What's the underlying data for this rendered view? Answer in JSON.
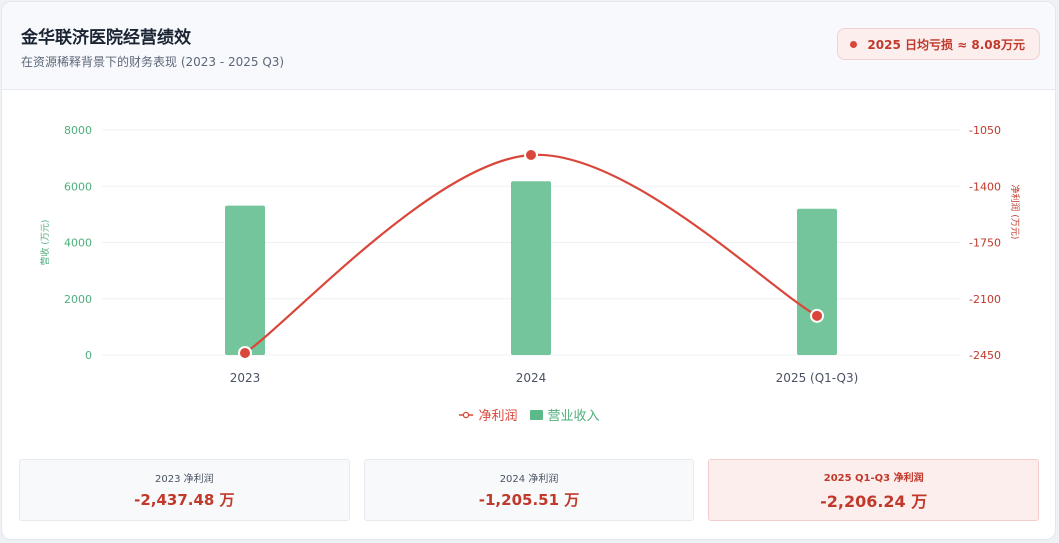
{
  "header": {
    "title": "金华联济医院经营绩效",
    "subtitle": "在资源稀释背景下的财务表现 (2023 - 2025 Q3)",
    "badge": "2025 日均亏损 ≈ 8.08万元"
  },
  "colors": {
    "revenue": "#75c59c",
    "revenue_axis": "#4fae7c",
    "profit": "#d9473a",
    "profit_axis": "#c0392b"
  },
  "chart_data": {
    "type": "bar+line",
    "categories": [
      "2023",
      "2024",
      "2025 (Q1-Q3)"
    ],
    "series": [
      {
        "name": "营业收入",
        "type": "bar",
        "axis": "left",
        "values": [
          5310,
          6180,
          5200
        ]
      },
      {
        "name": "净利润",
        "type": "line",
        "axis": "right",
        "values": [
          -2437.48,
          -1205.51,
          -2206.24
        ]
      }
    ],
    "y_left": {
      "label": "营收 (万元)",
      "min": 0,
      "max": 8000,
      "ticks": [
        0,
        2000,
        4000,
        6000,
        8000
      ]
    },
    "y_right": {
      "label": "净利润 (万元)",
      "min": -2450,
      "max": -1050,
      "ticks": [
        -2450,
        -2100,
        -1750,
        -1400,
        -1050
      ]
    },
    "legend": [
      "净利润",
      "营业收入"
    ],
    "legend_position": "bottom"
  },
  "stats": [
    {
      "label": "2023 净利润",
      "value": "-2,437.48 万"
    },
    {
      "label": "2024 净利润",
      "value": "-1,205.51 万"
    },
    {
      "label": "2025 Q1-Q3 净利润",
      "value": "-2,206.24 万"
    }
  ]
}
